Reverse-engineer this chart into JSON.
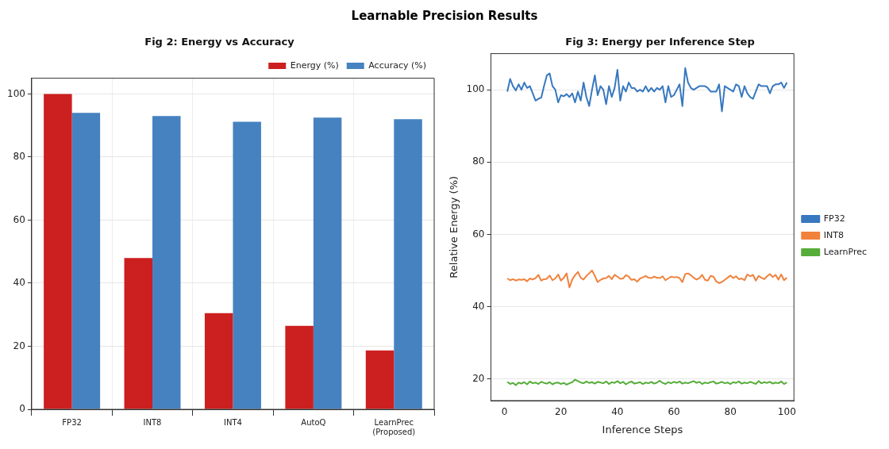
{
  "chart_data": [
    {
      "type": "bar",
      "annotations": [
        "Learnable Precision Results"
      ],
      "title": "Fig 2: Energy vs Accuracy",
      "categories": [
        "FP32",
        "INT8",
        "INT4",
        "AutoQ",
        "LearnPrec\n(Proposed)"
      ],
      "series": [
        {
          "name": "Energy (%)",
          "color": "#cc1f1f",
          "values": [
            100,
            48,
            30.5,
            26.5,
            18.7
          ]
        },
        {
          "name": "Accuracy (%)",
          "color": "#4682c0",
          "values": [
            94,
            93,
            91.2,
            92.5,
            92
          ]
        }
      ],
      "ylim": [
        0,
        105
      ],
      "yticks": [
        0,
        20,
        40,
        60,
        80,
        100
      ],
      "grid": true,
      "legend": "top right"
    },
    {
      "type": "line",
      "title": "Fig 3: Energy per Inference Step",
      "xlabel": "Inference Steps",
      "ylabel": "Relative Energy (%)",
      "x": [
        1,
        2,
        3,
        4,
        5,
        6,
        7,
        8,
        9,
        10,
        11,
        12,
        13,
        14,
        15,
        16,
        17,
        18,
        19,
        20,
        21,
        22,
        23,
        24,
        25,
        26,
        27,
        28,
        29,
        30,
        31,
        32,
        33,
        34,
        35,
        36,
        37,
        38,
        39,
        40,
        41,
        42,
        43,
        44,
        45,
        46,
        47,
        48,
        49,
        50,
        51,
        52,
        53,
        54,
        55,
        56,
        57,
        58,
        59,
        60,
        61,
        62,
        63,
        64,
        65,
        66,
        67,
        68,
        69,
        70,
        71,
        72,
        73,
        74,
        75,
        76,
        77,
        78,
        79,
        80,
        81,
        82,
        83,
        84,
        85,
        86,
        87,
        88,
        89,
        90,
        91,
        92,
        93,
        94,
        95,
        96,
        97,
        98,
        99,
        100
      ],
      "series": [
        {
          "name": "FP32",
          "color": "#3778bf",
          "values": [
            99.5,
            103,
            101,
            99.8,
            101.5,
            100,
            102,
            100.5,
            101,
            99,
            97,
            97.5,
            97.8,
            101,
            104,
            104.5,
            101,
            100,
            96.5,
            98.5,
            98.2,
            98.8,
            98,
            99,
            96.5,
            99.5,
            97,
            102,
            98,
            95.5,
            100,
            104,
            98.5,
            101,
            100,
            96,
            101,
            98,
            100.5,
            105.5,
            97,
            101,
            99.5,
            102,
            100.5,
            100.5,
            99.5,
            100,
            99.5,
            101,
            99.5,
            100.5,
            99.5,
            100.5,
            100,
            101,
            96.5,
            101,
            98,
            98.5,
            100,
            101.5,
            95.5,
            106,
            102,
            100.5,
            100,
            100.5,
            101,
            101,
            101,
            100.5,
            99.5,
            99.5,
            99.5,
            101.5,
            94,
            101,
            100.5,
            100,
            99.5,
            101.5,
            101,
            98,
            101,
            99,
            98,
            97.5,
            99.5,
            101.5,
            101,
            101,
            101,
            99,
            101,
            101.5,
            101.5,
            102,
            100.5,
            102
          ]
        },
        {
          "name": "INT8",
          "color": "#f0823c",
          "values": [
            47.8,
            47.3,
            47.6,
            47.2,
            47.5,
            47.4,
            47.6,
            47.0,
            47.8,
            47.5,
            47.9,
            48.8,
            47.2,
            47.6,
            47.7,
            48.6,
            47.3,
            47.8,
            48.9,
            47.2,
            48.0,
            49.2,
            45.3,
            47.5,
            48.7,
            49.6,
            48.0,
            47.5,
            48.5,
            49.2,
            50.0,
            48.5,
            46.8,
            47.4,
            47.8,
            47.9,
            48.5,
            47.6,
            48.8,
            48.3,
            47.7,
            47.8,
            48.7,
            48.3,
            47.4,
            47.6,
            46.9,
            47.8,
            48.1,
            48.5,
            48.0,
            47.9,
            48.3,
            48.0,
            47.9,
            48.4,
            47.3,
            47.8,
            48.3,
            48.1,
            48.2,
            47.9,
            46.8,
            49.0,
            49.2,
            48.7,
            48.0,
            47.5,
            47.9,
            48.8,
            47.4,
            47.2,
            48.5,
            48.3,
            47.0,
            46.5,
            46.8,
            47.4,
            48.0,
            48.6,
            47.9,
            48.4,
            47.6,
            47.8,
            47.3,
            48.9,
            48.4,
            48.8,
            47.2,
            48.5,
            48.0,
            47.6,
            48.4,
            49.0,
            48.2,
            48.8,
            47.5,
            48.9,
            47.3,
            48.0
          ]
        },
        {
          "name": "LearnPrec",
          "color": "#56ad3a",
          "values": [
            19.2,
            18.6,
            18.9,
            18.3,
            19.0,
            18.7,
            19.1,
            18.5,
            19.3,
            18.8,
            19.0,
            18.6,
            19.2,
            18.9,
            18.7,
            19.1,
            18.5,
            18.9,
            19.0,
            18.6,
            18.9,
            18.4,
            18.8,
            19.1,
            19.8,
            19.4,
            19.0,
            18.8,
            19.3,
            18.9,
            19.1,
            18.7,
            19.2,
            19.0,
            18.8,
            19.3,
            18.6,
            19.1,
            18.9,
            19.4,
            18.8,
            19.2,
            18.5,
            19.0,
            19.3,
            18.7,
            18.9,
            19.1,
            18.6,
            19.0,
            18.8,
            19.2,
            18.7,
            19.0,
            19.5,
            18.9,
            18.6,
            19.1,
            18.8,
            19.2,
            18.9,
            19.3,
            18.7,
            19.0,
            18.8,
            19.1,
            19.4,
            18.9,
            19.2,
            18.6,
            19.0,
            18.8,
            19.1,
            19.3,
            18.7,
            18.9,
            19.2,
            18.8,
            19.0,
            18.6,
            19.1,
            18.9,
            19.3,
            18.7,
            19.0,
            18.8,
            19.2,
            18.9,
            18.6,
            19.4,
            18.8,
            19.1,
            18.9,
            19.2,
            18.7,
            19.0,
            18.8,
            19.3,
            18.6,
            19.0
          ]
        }
      ],
      "xlim": [
        -4.8,
        102.5
      ],
      "xticks": [
        0,
        20,
        40,
        60,
        80,
        100
      ],
      "ylim": [
        14,
        110
      ],
      "yticks": [
        20,
        40,
        60,
        80,
        100
      ],
      "grid": "y",
      "legend": "right"
    }
  ]
}
